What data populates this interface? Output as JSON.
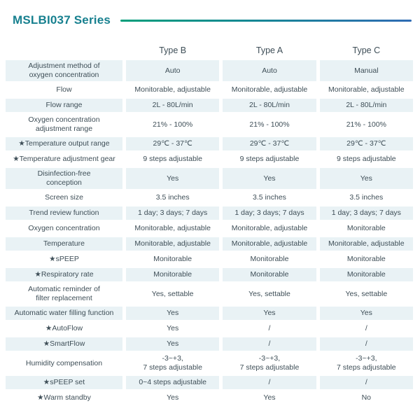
{
  "title": "MSLBI037 Series",
  "colors": {
    "title_teal": "#17808f",
    "rule_gradient_start": "#009e7a",
    "rule_gradient_end": "#2f6cb4",
    "row_shade": "#e9f2f5",
    "text": "#3e4e57"
  },
  "table": {
    "columns": [
      {
        "id": "type-b",
        "label": "Type B"
      },
      {
        "id": "type-a",
        "label": "Type A"
      },
      {
        "id": "type-c",
        "label": "Type C"
      }
    ],
    "rows": [
      {
        "label": "Adjustment method of\noxygen concentration",
        "values": [
          "Auto",
          "Auto",
          "Manual"
        ]
      },
      {
        "label": "Flow",
        "values": [
          "Monitorable, adjustable",
          "Monitorable, adjustable",
          "Monitorable, adjustable"
        ]
      },
      {
        "label": "Flow range",
        "values": [
          "2L - 80L/min",
          "2L - 80L/min",
          "2L - 80L/min"
        ]
      },
      {
        "label": "Oxygen concentration\nadjustment range",
        "values": [
          "21% - 100%",
          "21% - 100%",
          "21% - 100%"
        ]
      },
      {
        "label": "★Temperature output range",
        "values": [
          "29℃ - 37℃",
          "29℃ - 37℃",
          "29℃ - 37℃"
        ]
      },
      {
        "label": "★Temperature adjustment gear",
        "values": [
          "9 steps adjustable",
          "9 steps adjustable",
          "9 steps adjustable"
        ]
      },
      {
        "label": "Disinfection-free\nconception",
        "values": [
          "Yes",
          "Yes",
          "Yes"
        ]
      },
      {
        "label": "Screen size",
        "values": [
          "3.5 inches",
          "3.5 inches",
          "3.5 inches"
        ]
      },
      {
        "label": "Trend review function",
        "values": [
          "1 day; 3 days; 7 days",
          "1 day; 3 days; 7 days",
          "1 day; 3 days; 7 days"
        ]
      },
      {
        "label": "Oxygen concentration",
        "values": [
          "Monitorable, adjustable",
          "Monitorable, adjustable",
          "Monitorable"
        ]
      },
      {
        "label": "Temperature",
        "values": [
          "Monitorable, adjustable",
          "Monitorable, adjustable",
          "Monitorable, adjustable"
        ]
      },
      {
        "label": "★sPEEP",
        "values": [
          "Monitorable",
          "Monitorable",
          "Monitorable"
        ]
      },
      {
        "label": "★Respiratory rate",
        "values": [
          "Monitorable",
          "Monitorable",
          "Monitorable"
        ]
      },
      {
        "label": "Automatic reminder of\nfilter replacement",
        "values": [
          "Yes, settable",
          "Yes, settable",
          "Yes, settable"
        ]
      },
      {
        "label": "Automatic water filling function",
        "values": [
          "Yes",
          "Yes",
          "Yes"
        ]
      },
      {
        "label": "★AutoFlow",
        "values": [
          "Yes",
          "/",
          "/"
        ]
      },
      {
        "label": "★SmartFlow",
        "values": [
          "Yes",
          "/",
          "/"
        ]
      },
      {
        "label": "Humidity compensation",
        "values": [
          "-3~+3,\n7 steps adjustable",
          "-3~+3,\n7 steps adjustable",
          "-3~+3,\n7 steps adjustable"
        ]
      },
      {
        "label": "★sPEEP set",
        "values": [
          "0~4 steps adjustable",
          "/",
          "/"
        ]
      },
      {
        "label": "★Warm standby",
        "values": [
          "Yes",
          "Yes",
          "No"
        ]
      }
    ]
  }
}
